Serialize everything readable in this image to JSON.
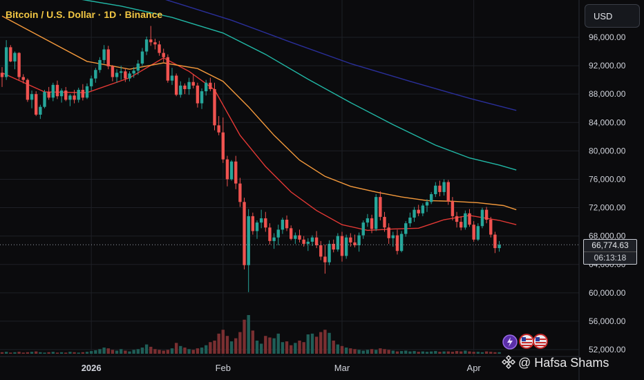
{
  "header": {
    "title": "Bitcoin / U.S. Dollar · 1D · Binance"
  },
  "toolbar": {
    "currency_label": "USD"
  },
  "price_tag": {
    "price": "66,774.63",
    "countdown": "06:13:18"
  },
  "watermark": {
    "text": "@ Hafsa Shams"
  },
  "colors": {
    "up": "#26a69a",
    "down": "#ef5350",
    "ma_short": "#e53935",
    "ma_mid": "#f59a3c",
    "ma_long": "#21b8a6",
    "ma_longest": "#2a2f9a",
    "grid": "#1e2026",
    "title": "#f2c744"
  },
  "chart_data": {
    "type": "candlestick",
    "symbol": "Bitcoin / U.S. Dollar",
    "interval": "1D",
    "exchange": "Binance",
    "y_ticks": [
      "52,000.00",
      "56,000.00",
      "60,000.00",
      "64,000.00",
      "68,000.00",
      "72,000.00",
      "76,000.00",
      "80,000.00",
      "84,000.00",
      "88,000.00",
      "92,000.00",
      "96,000.00"
    ],
    "y_tick_values": [
      52000,
      56000,
      60000,
      64000,
      68000,
      72000,
      76000,
      80000,
      84000,
      88000,
      92000,
      96000
    ],
    "ylim": [
      51500,
      100800
    ],
    "x_labels": [
      {
        "label": "2026",
        "index": 21,
        "bold": true
      },
      {
        "label": "Feb",
        "index": 52,
        "bold": false
      },
      {
        "label": "Mar",
        "index": 80,
        "bold": false
      },
      {
        "label": "Apr",
        "index": 111,
        "bold": false
      }
    ],
    "total_slots": 122,
    "last_price": 66774.63,
    "ohlc": [
      [
        91000,
        91800,
        89000,
        90400
      ],
      [
        90400,
        95600,
        90000,
        94600
      ],
      [
        94600,
        94900,
        92500,
        92600
      ],
      [
        92600,
        94000,
        91500,
        93800
      ],
      [
        93800,
        93900,
        90000,
        90400
      ],
      [
        90400,
        90800,
        89500,
        90000
      ],
      [
        90000,
        90200,
        86900,
        87200
      ],
      [
        87200,
        88500,
        86000,
        88000
      ],
      [
        88000,
        88400,
        84900,
        85100
      ],
      [
        85100,
        86500,
        84500,
        86200
      ],
      [
        86200,
        88600,
        86000,
        88300
      ],
      [
        88300,
        89000,
        87200,
        87500
      ],
      [
        87500,
        89600,
        87000,
        89300
      ],
      [
        89300,
        89900,
        87300,
        87700
      ],
      [
        87700,
        88800,
        86800,
        88500
      ],
      [
        88500,
        89000,
        87000,
        87200
      ],
      [
        87200,
        88000,
        86300,
        87800
      ],
      [
        87800,
        88600,
        86700,
        87200
      ],
      [
        87200,
        88900,
        86800,
        88600
      ],
      [
        88600,
        89400,
        87100,
        87500
      ],
      [
        87500,
        89500,
        87300,
        89100
      ],
      [
        89100,
        90600,
        88500,
        90200
      ],
      [
        90200,
        91700,
        89600,
        91400
      ],
      [
        91400,
        93200,
        91000,
        92800
      ],
      [
        92800,
        94900,
        92300,
        94300
      ],
      [
        94300,
        94800,
        91500,
        91900
      ],
      [
        91900,
        92100,
        89800,
        90400
      ],
      [
        90400,
        91500,
        89600,
        91000
      ],
      [
        91000,
        92000,
        90000,
        91200
      ],
      [
        91200,
        91600,
        89700,
        90200
      ],
      [
        90200,
        91200,
        89800,
        90900
      ],
      [
        90900,
        91800,
        90300,
        91300
      ],
      [
        91300,
        92800,
        90700,
        92300
      ],
      [
        92300,
        94500,
        92000,
        94000
      ],
      [
        94000,
        96100,
        93500,
        95700
      ],
      [
        95700,
        97600,
        94800,
        95300
      ],
      [
        95300,
        95800,
        94300,
        95000
      ],
      [
        95000,
        95500,
        93400,
        93800
      ],
      [
        93800,
        94400,
        92500,
        93200
      ],
      [
        93200,
        93600,
        89600,
        89900
      ],
      [
        89900,
        91700,
        89300,
        90600
      ],
      [
        90600,
        90900,
        87700,
        87900
      ],
      [
        87900,
        89800,
        87500,
        89200
      ],
      [
        89200,
        89500,
        88000,
        88700
      ],
      [
        88700,
        90300,
        87900,
        89700
      ],
      [
        89700,
        90800,
        88800,
        89200
      ],
      [
        89200,
        89600,
        86100,
        86700
      ],
      [
        86700,
        88800,
        85900,
        88400
      ],
      [
        88400,
        90000,
        87800,
        89600
      ],
      [
        89600,
        90300,
        88400,
        88700
      ],
      [
        88700,
        89600,
        82900,
        83600
      ],
      [
        83600,
        84900,
        82200,
        82600
      ],
      [
        82600,
        84700,
        78300,
        78800
      ],
      [
        78800,
        79300,
        75000,
        76000
      ],
      [
        76000,
        78700,
        75800,
        78500
      ],
      [
        78500,
        79300,
        74600,
        75400
      ],
      [
        75400,
        76200,
        72100,
        72800
      ],
      [
        72800,
        73400,
        63300,
        63900
      ],
      [
        63900,
        71800,
        60100,
        70800
      ],
      [
        70800,
        71300,
        68200,
        68700
      ],
      [
        68700,
        70200,
        67600,
        69900
      ],
      [
        69900,
        71700,
        69100,
        70500
      ],
      [
        70500,
        71400,
        68600,
        69200
      ],
      [
        69200,
        69800,
        66800,
        67300
      ],
      [
        67300,
        68400,
        66200,
        67800
      ],
      [
        67800,
        69600,
        66700,
        68900
      ],
      [
        68900,
        70600,
        68300,
        70300
      ],
      [
        70300,
        70900,
        68700,
        69100
      ],
      [
        69100,
        69500,
        67400,
        67600
      ],
      [
        67600,
        68500,
        66900,
        68100
      ],
      [
        68100,
        68900,
        67100,
        67500
      ],
      [
        67500,
        68000,
        66500,
        66900
      ],
      [
        66900,
        67700,
        65900,
        67200
      ],
      [
        67200,
        68100,
        66600,
        67800
      ],
      [
        67800,
        68700,
        66300,
        66700
      ],
      [
        66700,
        67300,
        64600,
        65100
      ],
      [
        65100,
        66800,
        62700,
        64300
      ],
      [
        64300,
        67400,
        63900,
        66900
      ],
      [
        66900,
        67500,
        65700,
        66100
      ],
      [
        66100,
        68400,
        65800,
        68000
      ],
      [
        68000,
        68600,
        64400,
        65200
      ],
      [
        65200,
        68200,
        64800,
        67800
      ],
      [
        67800,
        68400,
        66500,
        67100
      ],
      [
        67100,
        68200,
        66400,
        66700
      ],
      [
        66700,
        68500,
        65800,
        68100
      ],
      [
        68100,
        70200,
        67600,
        69900
      ],
      [
        69900,
        71100,
        69300,
        70500
      ],
      [
        70500,
        71000,
        68400,
        69000
      ],
      [
        69000,
        73900,
        68700,
        73500
      ],
      [
        73500,
        74300,
        70200,
        70700
      ],
      [
        70700,
        71400,
        68600,
        69200
      ],
      [
        69200,
        69800,
        66900,
        67700
      ],
      [
        67700,
        68600,
        66500,
        68100
      ],
      [
        68100,
        68900,
        65400,
        65900
      ],
      [
        65900,
        68700,
        65700,
        68300
      ],
      [
        68300,
        70100,
        67900,
        69800
      ],
      [
        69800,
        71300,
        69300,
        70600
      ],
      [
        70600,
        72100,
        70000,
        71700
      ],
      [
        71700,
        72400,
        70800,
        71200
      ],
      [
        71200,
        72600,
        70800,
        72300
      ],
      [
        72300,
        73200,
        71400,
        72800
      ],
      [
        72800,
        74200,
        72500,
        73900
      ],
      [
        73900,
        75600,
        73500,
        75100
      ],
      [
        75100,
        75800,
        73600,
        74200
      ],
      [
        74200,
        76000,
        73700,
        75600
      ],
      [
        75600,
        75900,
        72400,
        72900
      ],
      [
        72900,
        73500,
        70200,
        70800
      ],
      [
        70800,
        71400,
        69200,
        70000
      ],
      [
        70000,
        70800,
        68800,
        69200
      ],
      [
        69200,
        71600,
        68900,
        71200
      ],
      [
        71200,
        71800,
        69300,
        69600
      ],
      [
        69600,
        70100,
        67200,
        67500
      ],
      [
        67500,
        69800,
        67300,
        69400
      ],
      [
        69400,
        72000,
        69100,
        71700
      ],
      [
        71700,
        72100,
        69800,
        70300
      ],
      [
        70300,
        70700,
        67800,
        68200
      ],
      [
        68200,
        68600,
        65600,
        66300
      ],
      [
        66300,
        67300,
        65800,
        66770
      ]
    ],
    "volume_relative": [
      0.04,
      0.05,
      0.03,
      0.04,
      0.05,
      0.03,
      0.04,
      0.05,
      0.06,
      0.04,
      0.03,
      0.04,
      0.05,
      0.03,
      0.04,
      0.03,
      0.05,
      0.04,
      0.03,
      0.04,
      0.05,
      0.07,
      0.09,
      0.12,
      0.16,
      0.14,
      0.1,
      0.08,
      0.12,
      0.08,
      0.06,
      0.1,
      0.12,
      0.16,
      0.24,
      0.18,
      0.12,
      0.1,
      0.08,
      0.1,
      0.14,
      0.28,
      0.2,
      0.16,
      0.12,
      0.1,
      0.14,
      0.16,
      0.22,
      0.3,
      0.34,
      0.52,
      0.62,
      0.46,
      0.32,
      0.4,
      0.56,
      0.88,
      1.0,
      0.6,
      0.34,
      0.26,
      0.46,
      0.42,
      0.4,
      0.52,
      0.3,
      0.32,
      0.22,
      0.28,
      0.34,
      0.3,
      0.5,
      0.52,
      0.44,
      0.56,
      0.62,
      0.54,
      0.34,
      0.24,
      0.2,
      0.16,
      0.14,
      0.12,
      0.1,
      0.08,
      0.1,
      0.12,
      0.1,
      0.14,
      0.12,
      0.1,
      0.08,
      0.06,
      0.07,
      0.08,
      0.06,
      0.07,
      0.05,
      0.06,
      0.05,
      0.06,
      0.07,
      0.05,
      0.06,
      0.06,
      0.05,
      0.07,
      0.06,
      0.08,
      0.06,
      0.05,
      0.05,
      0.04,
      0.06,
      0.05,
      0.04,
      0.04,
      0.03,
      0.02,
      0.02,
      0.01
    ],
    "moving_averages": [
      {
        "color": "#e53935",
        "points": [
          [
            0,
            91000
          ],
          [
            10,
            88300
          ],
          [
            20,
            88200
          ],
          [
            30,
            90300
          ],
          [
            38,
            93100
          ],
          [
            44,
            91200
          ],
          [
            50,
            88600
          ],
          [
            56,
            82200
          ],
          [
            62,
            77800
          ],
          [
            68,
            74200
          ],
          [
            74,
            71600
          ],
          [
            80,
            69600
          ],
          [
            86,
            68800
          ],
          [
            92,
            69000
          ],
          [
            98,
            69100
          ],
          [
            104,
            70300
          ],
          [
            110,
            70900
          ],
          [
            117,
            70200
          ],
          [
            121,
            69600
          ]
        ]
      },
      {
        "color": "#f59a3c",
        "points": [
          [
            0,
            99000
          ],
          [
            10,
            95800
          ],
          [
            20,
            92600
          ],
          [
            30,
            91500
          ],
          [
            38,
            92400
          ],
          [
            46,
            91600
          ],
          [
            52,
            89800
          ],
          [
            58,
            86200
          ],
          [
            64,
            82200
          ],
          [
            70,
            78700
          ],
          [
            76,
            76400
          ],
          [
            82,
            75000
          ],
          [
            88,
            74200
          ],
          [
            94,
            73500
          ],
          [
            100,
            73000
          ],
          [
            106,
            72900
          ],
          [
            112,
            72700
          ],
          [
            118,
            72300
          ],
          [
            121,
            71700
          ]
        ]
      },
      {
        "color": "#21b8a6",
        "points": [
          [
            0,
            103000
          ],
          [
            14,
            101800
          ],
          [
            28,
            100400
          ],
          [
            40,
            98800
          ],
          [
            52,
            96600
          ],
          [
            62,
            93600
          ],
          [
            72,
            90100
          ],
          [
            82,
            86800
          ],
          [
            92,
            83700
          ],
          [
            102,
            80800
          ],
          [
            110,
            79000
          ],
          [
            117,
            78000
          ],
          [
            121,
            77300
          ]
        ]
      },
      {
        "color": "#2a2f9a",
        "points": [
          [
            0,
            106000
          ],
          [
            20,
            104700
          ],
          [
            38,
            101400
          ],
          [
            54,
            98400
          ],
          [
            68,
            95300
          ],
          [
            82,
            92300
          ],
          [
            96,
            89800
          ],
          [
            110,
            87400
          ],
          [
            121,
            85700
          ]
        ]
      }
    ],
    "grid": true
  }
}
